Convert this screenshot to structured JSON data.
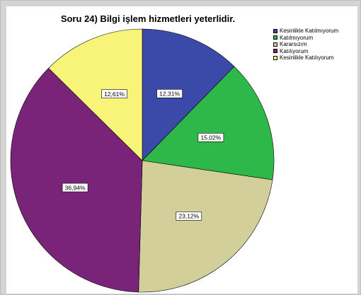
{
  "chart_data": {
    "type": "pie",
    "title": "Soru 24) Bilgi işlem hizmetleri yeterlidir.",
    "legend_position": "top-right",
    "slices": [
      {
        "label": "Kesinlikle Katılmıyorum",
        "value": 12.31,
        "value_label": "12,31%",
        "color": "#3b4aa8"
      },
      {
        "label": "Katılmıyorum",
        "value": 15.02,
        "value_label": "15,02%",
        "color": "#2eb84a"
      },
      {
        "label": "Kararsızım",
        "value": 23.12,
        "value_label": "23,12%",
        "color": "#d3cf9b"
      },
      {
        "label": "Katılıyorum",
        "value": 36.94,
        "value_label": "36,94%",
        "color": "#7a2479"
      },
      {
        "label": "Kesinlikle Katılıyorum",
        "value": 12.61,
        "value_label": "12,61%",
        "color": "#f8f47a"
      }
    ]
  }
}
